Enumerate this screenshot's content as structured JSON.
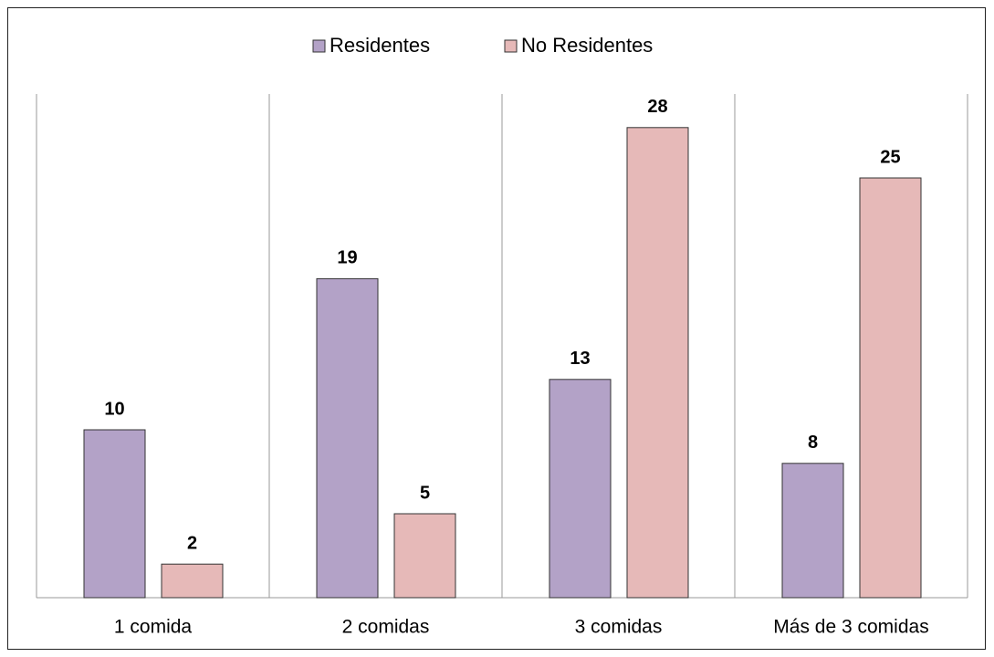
{
  "chart_data": {
    "type": "bar",
    "categories": [
      "1 comida",
      "2 comidas",
      "3 comidas",
      "Más de 3 comidas"
    ],
    "series": [
      {
        "name": "Residentes",
        "color": "#b3a2c7",
        "values": [
          10,
          19,
          13,
          8
        ]
      },
      {
        "name": "No Residentes",
        "color": "#e6b9b8",
        "values": [
          2,
          5,
          28,
          25
        ]
      }
    ],
    "ylim": [
      0,
      30
    ],
    "legend": "top"
  }
}
